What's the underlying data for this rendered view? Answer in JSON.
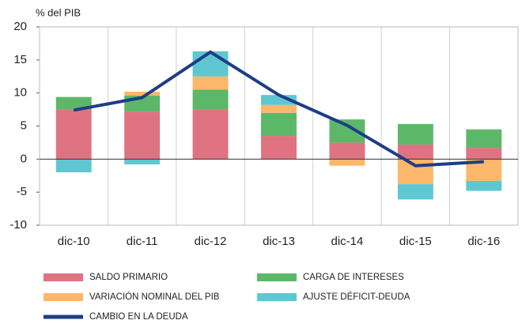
{
  "chart_data": {
    "type": "bar",
    "stacked": true,
    "y_label": "% del PIB",
    "categories": [
      "dic-10",
      "dic-11",
      "dic-12",
      "dic-13",
      "dic-14",
      "dic-15",
      "dic-16"
    ],
    "series": [
      {
        "name": "SALDO PRIMARIO",
        "color": "#e07382",
        "type": "bar",
        "values": [
          7.5,
          7.2,
          7.5,
          3.5,
          2.5,
          2.2,
          1.7
        ]
      },
      {
        "name": "CARGA DE INTERESES",
        "color": "#5cb868",
        "type": "bar",
        "values": [
          1.9,
          2.4,
          3.0,
          3.5,
          3.5,
          3.1,
          2.8
        ]
      },
      {
        "name": "VARIACIÓN NOMINAL DEL PIB",
        "color": "#fbb76a",
        "type": "bar",
        "values": [
          0,
          0.6,
          2.0,
          1.2,
          -1.0,
          -3.8,
          -3.3
        ]
      },
      {
        "name": "AJUSTE DÉFICIT-DEUDA",
        "color": "#5ec7d2",
        "type": "bar",
        "values": [
          -2.0,
          -0.8,
          3.8,
          1.5,
          0,
          -2.3,
          -1.5
        ]
      },
      {
        "name": "CAMBIO EN LA DEUDA",
        "color": "#1f3d86",
        "type": "line",
        "values": [
          7.4,
          9.3,
          16.2,
          9.7,
          5.1,
          -1.0,
          -0.4
        ]
      }
    ],
    "ylim": [
      -10,
      20
    ],
    "yticks": [
      -10,
      -5,
      0,
      5,
      10,
      15,
      20
    ],
    "grid": true,
    "legend": "bottom"
  }
}
